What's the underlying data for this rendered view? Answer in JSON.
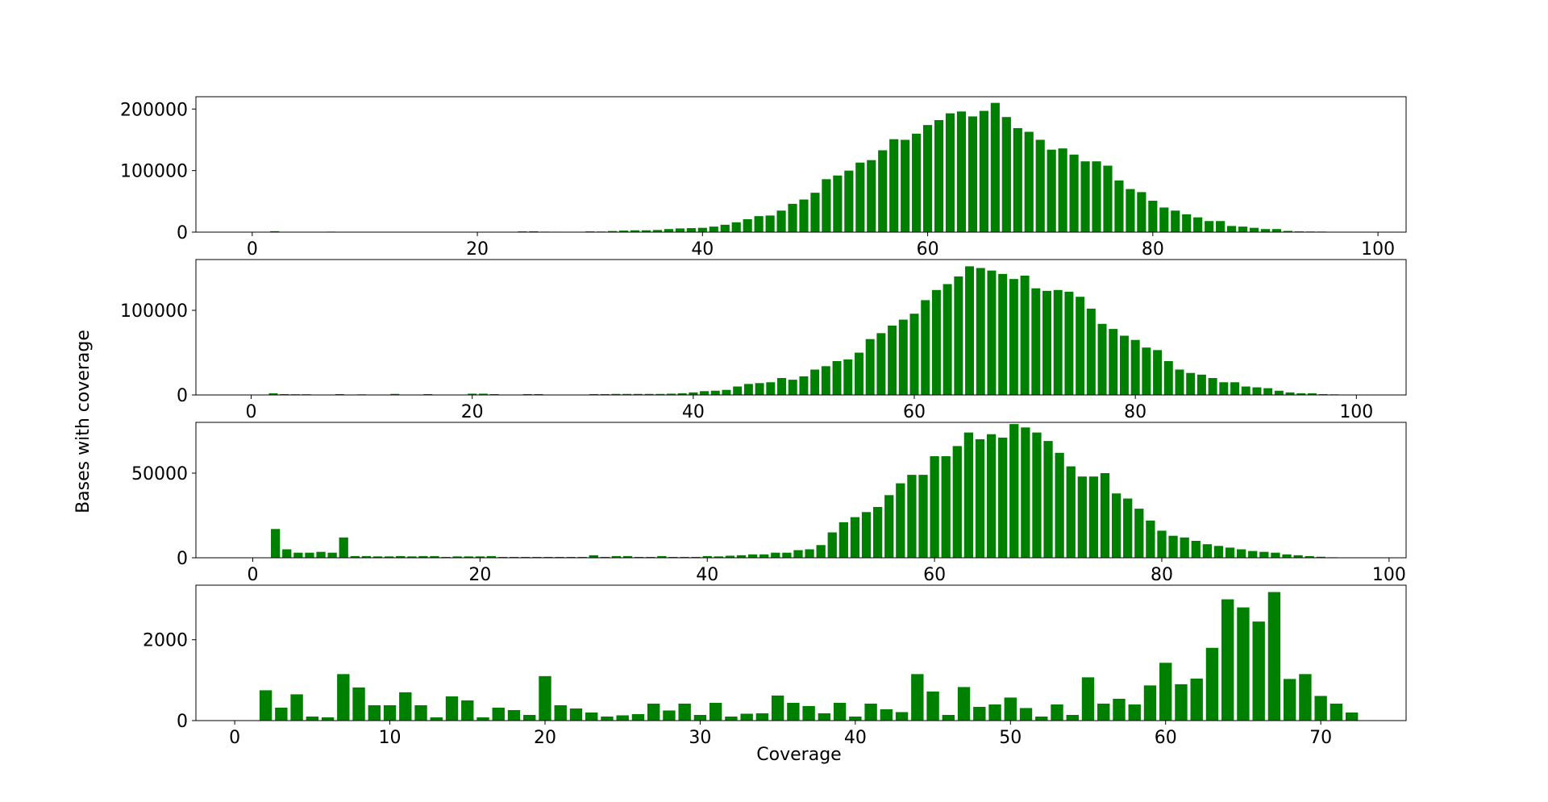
{
  "figure": {
    "ylabel": "Bases with coverage",
    "xlabel": "Coverage",
    "bar_color": "#008000"
  },
  "chart_data": [
    {
      "type": "bar",
      "xlim": [
        -5,
        102.5
      ],
      "ylim": [
        0,
        220000
      ],
      "xticks": [
        0,
        20,
        40,
        60,
        80,
        100
      ],
      "yticks": [
        0,
        100000,
        200000
      ],
      "grid": false,
      "x": [
        1,
        2,
        3,
        4,
        5,
        6,
        7,
        8,
        9,
        10,
        11,
        12,
        13,
        14,
        15,
        16,
        17,
        18,
        19,
        20,
        21,
        22,
        23,
        24,
        25,
        26,
        27,
        28,
        29,
        30,
        31,
        32,
        33,
        34,
        35,
        36,
        37,
        38,
        39,
        40,
        41,
        42,
        43,
        44,
        45,
        46,
        47,
        48,
        49,
        50,
        51,
        52,
        53,
        54,
        55,
        56,
        57,
        58,
        59,
        60,
        61,
        62,
        63,
        64,
        65,
        66,
        67,
        68,
        69,
        70,
        71,
        72,
        73,
        74,
        75,
        76,
        77,
        78,
        79,
        80,
        81,
        82,
        83,
        84,
        85,
        86,
        87,
        88,
        89,
        90,
        91,
        92,
        93,
        94,
        95,
        96,
        97,
        98,
        99
      ],
      "values": [
        0,
        1500,
        0,
        0,
        0,
        0,
        800,
        0,
        500,
        600,
        300,
        0,
        400,
        0,
        0,
        0,
        0,
        0,
        0,
        0,
        0,
        0,
        0,
        1200,
        1300,
        800,
        700,
        0,
        0,
        1200,
        1000,
        1800,
        2500,
        3000,
        3000,
        3500,
        5000,
        6000,
        6500,
        7000,
        9000,
        12000,
        16000,
        21000,
        26000,
        27000,
        35000,
        46000,
        53000,
        64000,
        86000,
        92000,
        100000,
        113000,
        117000,
        133000,
        151000,
        150000,
        160000,
        174000,
        182000,
        193000,
        196000,
        188000,
        197000,
        210000,
        187000,
        169000,
        163000,
        150000,
        134000,
        136000,
        126000,
        115000,
        115000,
        108000,
        84000,
        70000,
        65000,
        51000,
        40000,
        35000,
        29000,
        24000,
        18000,
        18000,
        10000,
        9000,
        7000,
        5000,
        5000,
        2000,
        1200,
        1000,
        900,
        500,
        300,
        200,
        100
      ]
    },
    {
      "type": "bar",
      "xlim": [
        -5,
        104.5
      ],
      "ylim": [
        0,
        160000
      ],
      "xticks": [
        0,
        20,
        40,
        60,
        80,
        100
      ],
      "yticks": [
        0,
        100000
      ],
      "grid": false,
      "x": [
        1,
        2,
        3,
        4,
        5,
        6,
        7,
        8,
        9,
        10,
        11,
        12,
        13,
        14,
        15,
        16,
        17,
        18,
        19,
        20,
        21,
        22,
        23,
        24,
        25,
        26,
        27,
        28,
        29,
        30,
        31,
        32,
        33,
        34,
        35,
        36,
        37,
        38,
        39,
        40,
        41,
        42,
        43,
        44,
        45,
        46,
        47,
        48,
        49,
        50,
        51,
        52,
        53,
        54,
        55,
        56,
        57,
        58,
        59,
        60,
        61,
        62,
        63,
        64,
        65,
        66,
        67,
        68,
        69,
        70,
        71,
        72,
        73,
        74,
        75,
        76,
        77,
        78,
        79,
        80,
        81,
        82,
        83,
        84,
        85,
        86,
        87,
        88,
        89,
        90,
        91,
        92,
        93,
        94,
        95,
        96,
        97,
        98,
        99,
        100,
        101
      ],
      "values": [
        0,
        2000,
        1000,
        800,
        800,
        0,
        0,
        1000,
        0,
        700,
        0,
        0,
        1200,
        0,
        0,
        1000,
        0,
        0,
        0,
        1500,
        1500,
        1000,
        0,
        0,
        1000,
        1000,
        0,
        0,
        0,
        0,
        1000,
        1000,
        1200,
        1200,
        1200,
        1200,
        1200,
        1500,
        2000,
        3000,
        4500,
        5000,
        6000,
        10000,
        13000,
        14000,
        15000,
        20000,
        18000,
        22000,
        30000,
        34000,
        40000,
        42000,
        50000,
        66000,
        73000,
        82000,
        89000,
        96000,
        112000,
        124000,
        131000,
        140000,
        152000,
        150000,
        147000,
        143000,
        137000,
        141000,
        126000,
        123000,
        124000,
        122000,
        116000,
        102000,
        84000,
        78000,
        70000,
        65000,
        56000,
        53000,
        40000,
        30000,
        26000,
        24000,
        20000,
        15000,
        15000,
        10000,
        9000,
        8000,
        5000,
        3000,
        2000,
        2000,
        1000,
        700,
        300,
        200,
        100
      ]
    },
    {
      "type": "bar",
      "xlim": [
        -5,
        101.5
      ],
      "ylim": [
        0,
        80000
      ],
      "xticks": [
        0,
        20,
        40,
        60,
        80,
        100
      ],
      "yticks": [
        0,
        50000
      ],
      "grid": false,
      "x": [
        1,
        2,
        3,
        4,
        5,
        6,
        7,
        8,
        9,
        10,
        11,
        12,
        13,
        14,
        15,
        16,
        17,
        18,
        19,
        20,
        21,
        22,
        23,
        24,
        25,
        26,
        27,
        28,
        29,
        30,
        31,
        32,
        33,
        34,
        35,
        36,
        37,
        38,
        39,
        40,
        41,
        42,
        43,
        44,
        45,
        46,
        47,
        48,
        49,
        50,
        51,
        52,
        53,
        54,
        55,
        56,
        57,
        58,
        59,
        60,
        61,
        62,
        63,
        64,
        65,
        66,
        67,
        68,
        69,
        70,
        71,
        72,
        73,
        74,
        75,
        76,
        77,
        78,
        79,
        80,
        81,
        82,
        83,
        84,
        85,
        86,
        87,
        88,
        89,
        90,
        91,
        92,
        93,
        94,
        95,
        96,
        97,
        98,
        99
      ],
      "values": [
        0,
        17000,
        5000,
        3000,
        3000,
        3500,
        3000,
        12000,
        1000,
        1000,
        800,
        800,
        1000,
        800,
        1000,
        1000,
        500,
        800,
        800,
        800,
        1000,
        500,
        500,
        500,
        500,
        500,
        500,
        500,
        500,
        1500,
        500,
        1000,
        1000,
        500,
        500,
        1000,
        500,
        500,
        500,
        1000,
        800,
        1200,
        1500,
        2000,
        2000,
        3000,
        3000,
        4500,
        5000,
        7500,
        15000,
        21000,
        24000,
        27000,
        30000,
        37000,
        44000,
        49000,
        49000,
        60000,
        60000,
        66000,
        74000,
        70000,
        73000,
        71000,
        79000,
        77000,
        74000,
        69000,
        62000,
        54000,
        48000,
        48000,
        50000,
        38000,
        35000,
        29000,
        22000,
        16000,
        13000,
        12000,
        10000,
        8000,
        7000,
        6000,
        5000,
        4000,
        3500,
        3000,
        2000,
        1500,
        1000,
        600,
        300,
        200,
        100,
        100,
        0
      ]
    },
    {
      "type": "bar",
      "xlim": [
        -2.5,
        75.5
      ],
      "ylim": [
        0,
        3350
      ],
      "xticks": [
        0,
        10,
        20,
        30,
        40,
        50,
        60,
        70
      ],
      "yticks": [
        0,
        2000
      ],
      "grid": false,
      "x": [
        1,
        2,
        3,
        4,
        5,
        6,
        7,
        8,
        9,
        10,
        11,
        12,
        13,
        14,
        15,
        16,
        17,
        18,
        19,
        20,
        21,
        22,
        23,
        24,
        25,
        26,
        27,
        28,
        29,
        30,
        31,
        32,
        33,
        34,
        35,
        36,
        37,
        38,
        39,
        40,
        41,
        42,
        43,
        44,
        45,
        46,
        47,
        48,
        49,
        50,
        51,
        52,
        53,
        54,
        55,
        56,
        57,
        58,
        59,
        60,
        61,
        62,
        63,
        64,
        65,
        66,
        67,
        68,
        69,
        70,
        71,
        72
      ],
      "values": [
        0,
        750,
        320,
        650,
        100,
        80,
        1150,
        820,
        380,
        380,
        700,
        380,
        80,
        600,
        500,
        80,
        320,
        260,
        140,
        1100,
        380,
        300,
        200,
        100,
        130,
        160,
        420,
        250,
        420,
        140,
        440,
        100,
        170,
        180,
        620,
        440,
        360,
        180,
        440,
        100,
        420,
        280,
        210,
        1150,
        720,
        140,
        830,
        340,
        400,
        570,
        310,
        100,
        400,
        140,
        1070,
        420,
        540,
        400,
        870,
        1430,
        900,
        1040,
        1800,
        3000,
        2800,
        2450,
        3180,
        1030,
        1150,
        610,
        420,
        200
      ]
    }
  ]
}
